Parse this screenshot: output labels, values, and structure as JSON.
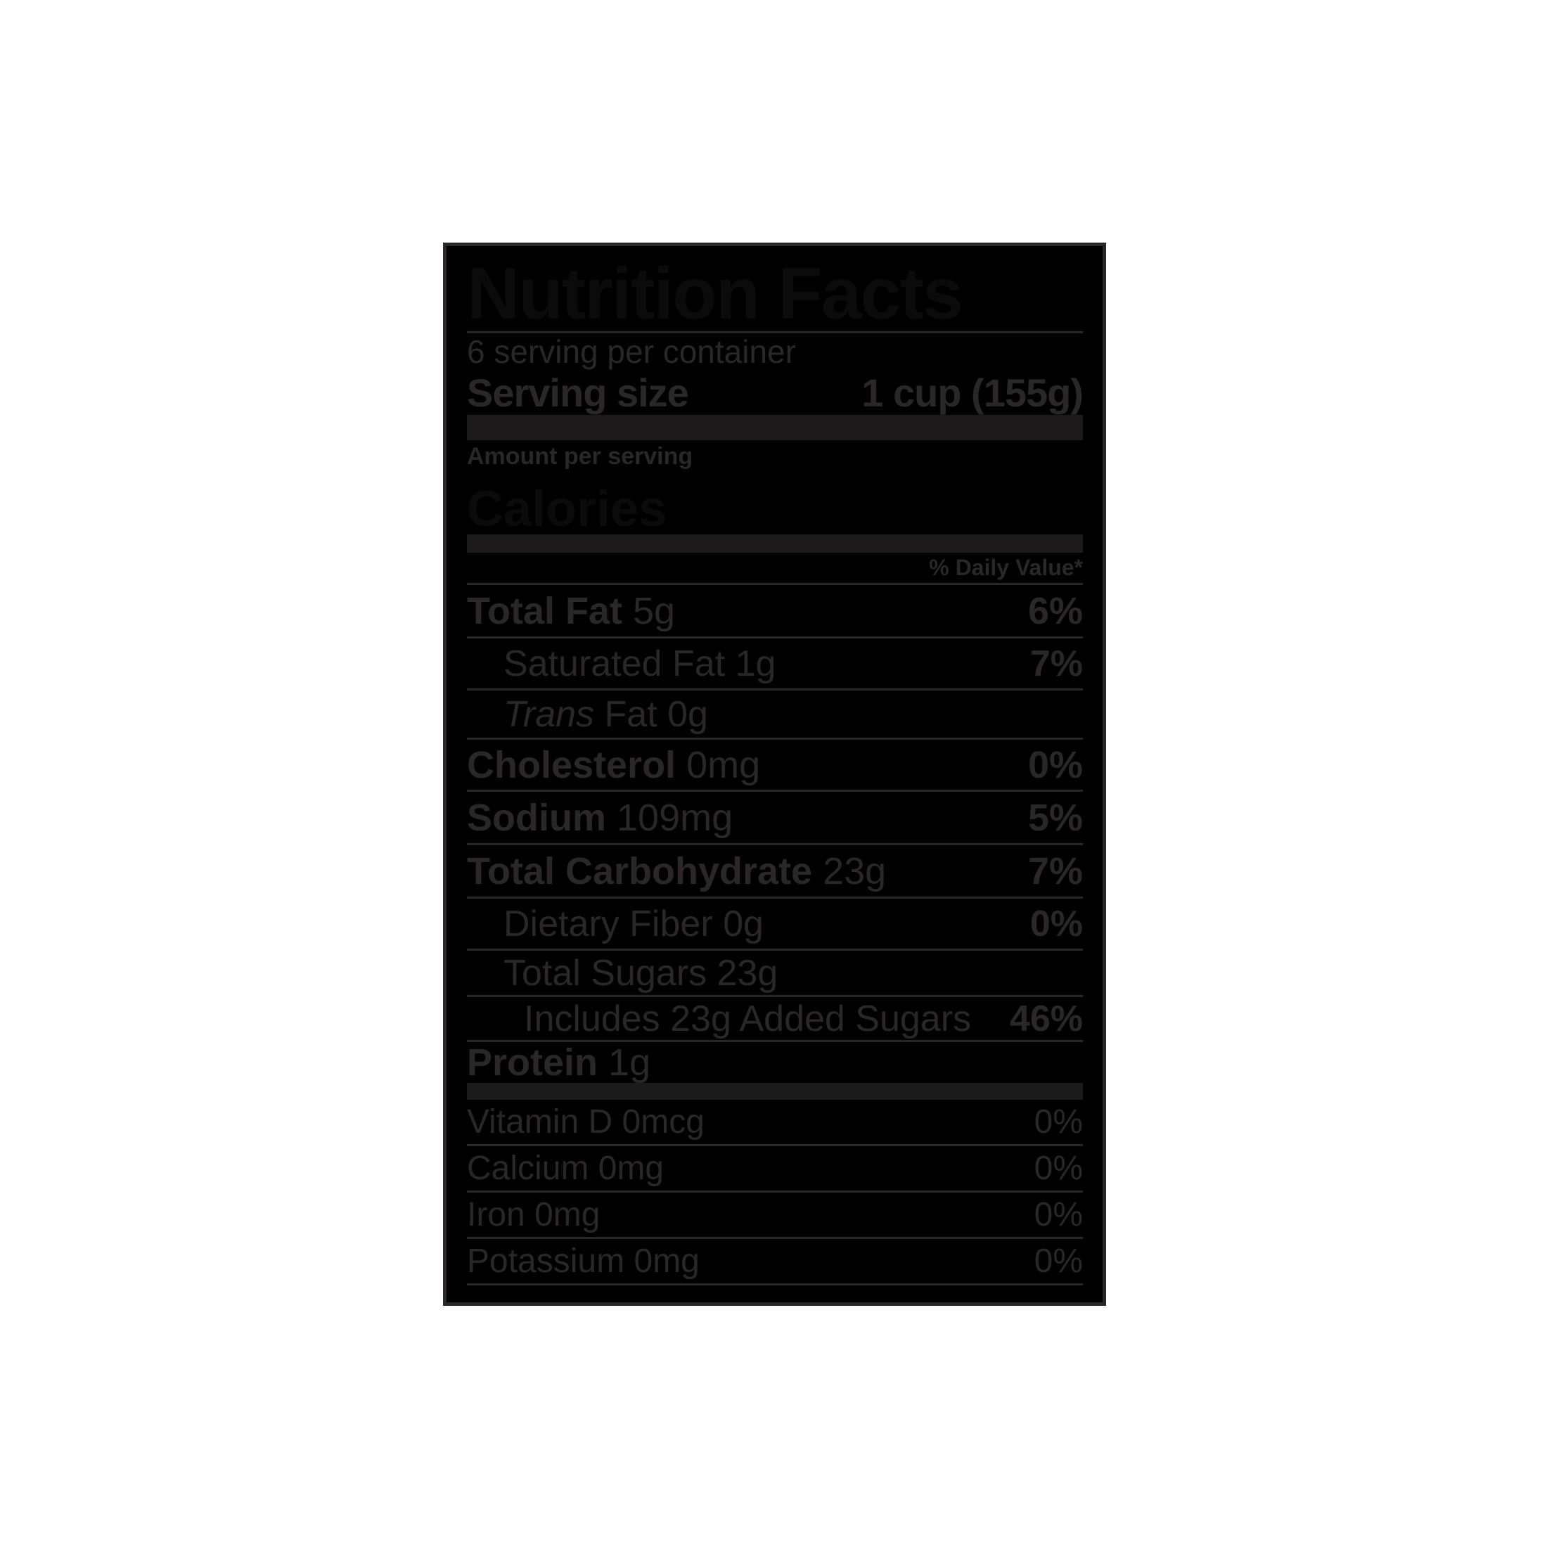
{
  "colors": {
    "page-bg": "#ffffff",
    "box-bg": "#000000",
    "ink": "#2b2728",
    "bar": "#1d1a1b",
    "hidden-ink": "#0b0b0b"
  },
  "label": {
    "title": "Nutrition Facts",
    "servings_per_container": "6 serving per container",
    "serving_size_label": "Serving size",
    "serving_size_value": "1 cup (155g)",
    "amount_per_serving": "Amount per serving",
    "calories_label": "Calories",
    "daily_value_header": "% Daily Value*",
    "nutrients": [
      {
        "name": "Total Fat",
        "amount": "5g",
        "percent": "6%"
      },
      {
        "name": "Saturated Fat",
        "amount": "1g",
        "percent": "7%"
      },
      {
        "name": "Trans",
        "name_rest": "Fat",
        "amount": "0g",
        "percent": ""
      },
      {
        "name": "Cholesterol",
        "amount": "0mg",
        "percent": "0%"
      },
      {
        "name": "Sodium",
        "amount": "109mg",
        "percent": "5%"
      },
      {
        "name": "Total Carbohydrate",
        "amount": "23g",
        "percent": "7%"
      },
      {
        "name": "Dietary Fiber",
        "amount": "0g",
        "percent": "0%"
      },
      {
        "name": "Total Sugars",
        "amount": "23g",
        "percent": ""
      },
      {
        "name": "Includes 23g Added Sugars",
        "amount": "",
        "percent": "46%"
      },
      {
        "name": "Protein",
        "amount": "1g",
        "percent": ""
      }
    ],
    "micronutrients": [
      {
        "name": "Vitamin D",
        "amount": "0mcg",
        "percent": "0%"
      },
      {
        "name": "Calcium",
        "amount": "0mg",
        "percent": "0%"
      },
      {
        "name": "Iron",
        "amount": "0mg",
        "percent": "0%"
      },
      {
        "name": "Potassium",
        "amount": "0mg",
        "percent": "0%"
      }
    ]
  }
}
